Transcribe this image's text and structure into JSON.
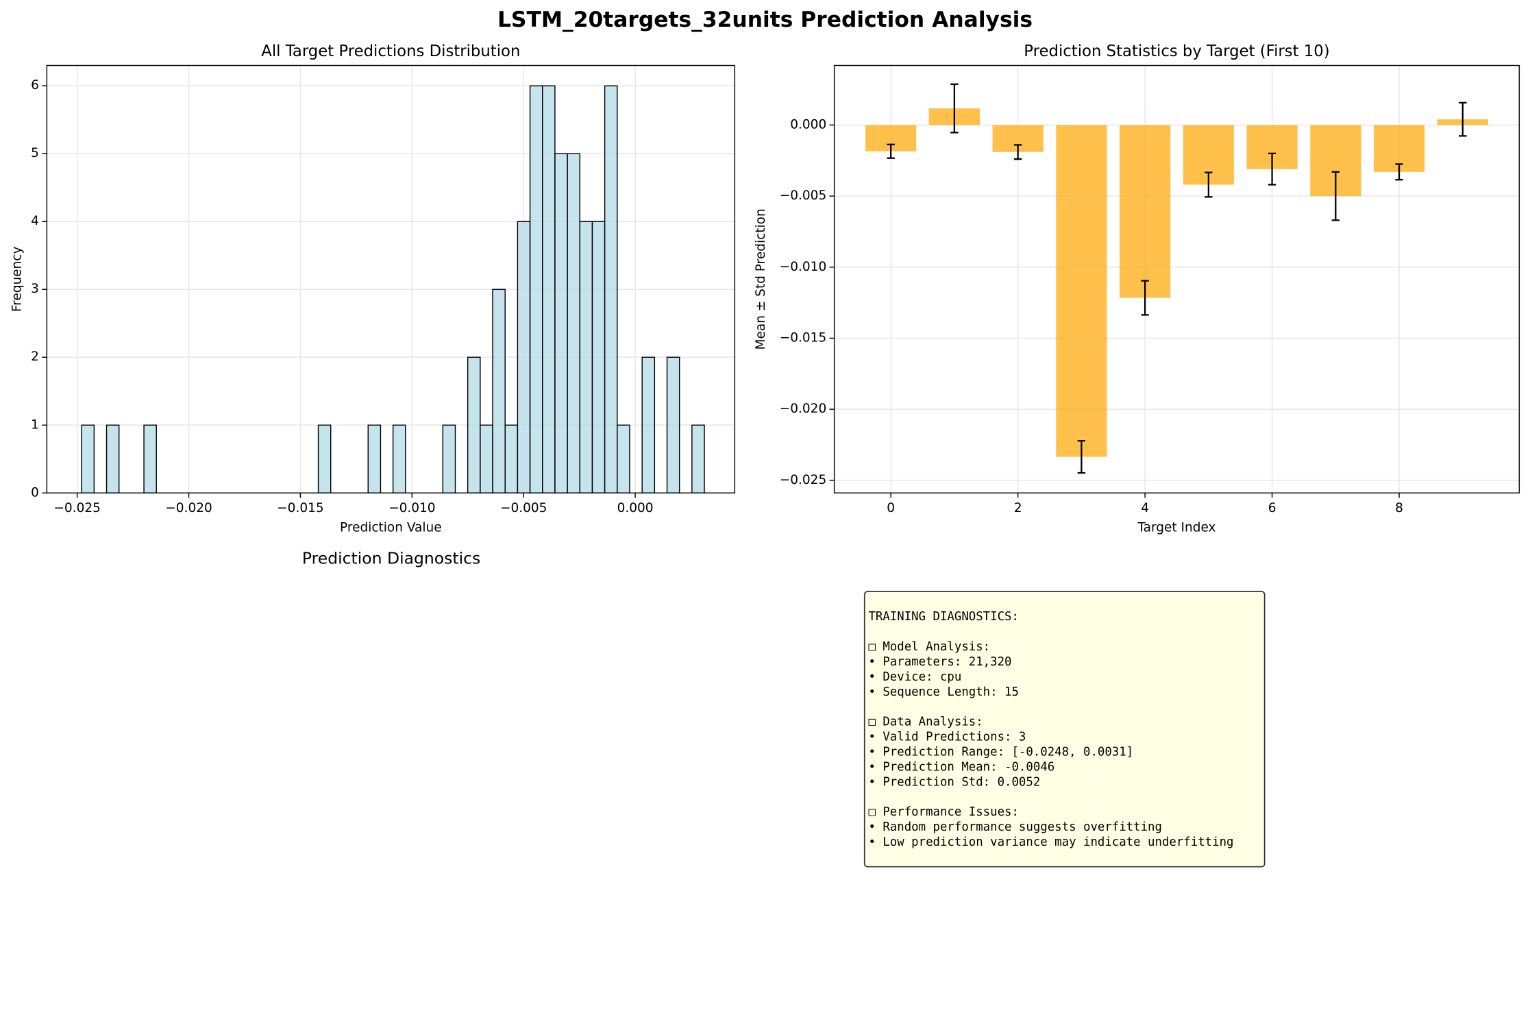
{
  "title": "LSTM_20targets_32units Prediction Analysis",
  "chart_data": [
    {
      "type": "histogram",
      "title": "All Target Predictions Distribution",
      "x_label": "Prediction Value",
      "y_label": "Frequency",
      "bins": [
        -0.0248,
        -0.024242,
        -0.023684,
        -0.023126,
        -0.022568,
        -0.02201,
        -0.021452,
        -0.020894,
        -0.020336,
        -0.019778,
        -0.01922,
        -0.018662,
        -0.018104,
        -0.017546,
        -0.016988,
        -0.01643,
        -0.015872,
        -0.015314,
        -0.014756,
        -0.014198,
        -0.01364,
        -0.013082,
        -0.012524,
        -0.011966,
        -0.011408,
        -0.01085,
        -0.010292,
        -0.009734,
        -0.009176,
        -0.008618,
        -0.00806,
        -0.007502,
        -0.006944,
        -0.006386,
        -0.005828,
        -0.00527,
        -0.004712,
        -0.004154,
        -0.003596,
        -0.003038,
        -0.00248,
        -0.001922,
        -0.001364,
        -0.000806,
        -0.000248,
        0.00031,
        0.000868,
        0.001426,
        0.001984,
        0.002542,
        0.0031
      ],
      "values": [
        1,
        0,
        1,
        0,
        0,
        1,
        0,
        0,
        0,
        0,
        0,
        0,
        0,
        0,
        0,
        0,
        0,
        0,
        0,
        1,
        0,
        0,
        0,
        1,
        0,
        1,
        0,
        0,
        0,
        1,
        0,
        2,
        1,
        3,
        1,
        4,
        6,
        6,
        5,
        5,
        4,
        4,
        6,
        1,
        0,
        2,
        0,
        2,
        0,
        1
      ],
      "color": "#add8e6",
      "edge_color": "#000000",
      "xlim": [
        -0.02636,
        0.00446
      ],
      "xticks": [
        {
          "value": -0.025,
          "label": "−0.025"
        },
        {
          "value": -0.02,
          "label": "−0.020"
        },
        {
          "value": -0.015,
          "label": "−0.015"
        },
        {
          "value": -0.01,
          "label": "−0.010"
        },
        {
          "value": -0.005,
          "label": "−0.005"
        },
        {
          "value": 0,
          "label": "0.000"
        }
      ],
      "ylim": [
        0,
        6.3
      ],
      "yticks": [
        0,
        1,
        2,
        3,
        4,
        5,
        6
      ],
      "grid": true
    },
    {
      "type": "bar",
      "title": "Prediction Statistics by Target (First 10)",
      "x_label": "Target Index",
      "y_label": "Mean ± Std Prediction",
      "x": [
        0,
        1,
        2,
        3,
        4,
        5,
        6,
        7,
        8,
        9
      ],
      "values": [
        -0.00185,
        0.00117,
        -0.0019,
        -0.02335,
        -0.01216,
        -0.0042,
        -0.0031,
        -0.005,
        -0.0033,
        0.0004
      ],
      "errors": [
        0.00048,
        0.0017,
        0.0005,
        0.00113,
        0.0012,
        0.00086,
        0.0011,
        0.0017,
        0.00055,
        0.00117
      ],
      "color": "#ffa500",
      "xlim": [
        -0.89,
        9.89
      ],
      "xticks": [
        0,
        2,
        4,
        6,
        8
      ],
      "ylim": [
        -0.02589,
        0.00419
      ],
      "yticks": [
        {
          "value": 0,
          "label": "0.000"
        },
        {
          "value": -0.005,
          "label": "−0.005"
        },
        {
          "value": -0.01,
          "label": "−0.010"
        },
        {
          "value": -0.015,
          "label": "−0.015"
        },
        {
          "value": -0.02,
          "label": "−0.020"
        },
        {
          "value": -0.025,
          "label": "−0.025"
        }
      ],
      "grid": true
    }
  ],
  "diagnostics_title": "Prediction Diagnostics",
  "text_panel": {
    "header": "TRAINING DIAGNOSTICS:",
    "sections": [
      {
        "heading": "□ Model Analysis:",
        "items": [
          "• Parameters: 21,320",
          "• Device: cpu",
          "• Sequence Length: 15"
        ]
      },
      {
        "heading": "□ Data Analysis:",
        "items": [
          "• Valid Predictions: 3",
          "• Prediction Range: [-0.0248, 0.0031]",
          "• Prediction Mean: -0.0046",
          "• Prediction Std: 0.0052"
        ]
      },
      {
        "heading": "□ Performance Issues:",
        "items": [
          "• Random performance suggests overfitting",
          "• Low prediction variance may indicate underfitting"
        ]
      }
    ]
  }
}
